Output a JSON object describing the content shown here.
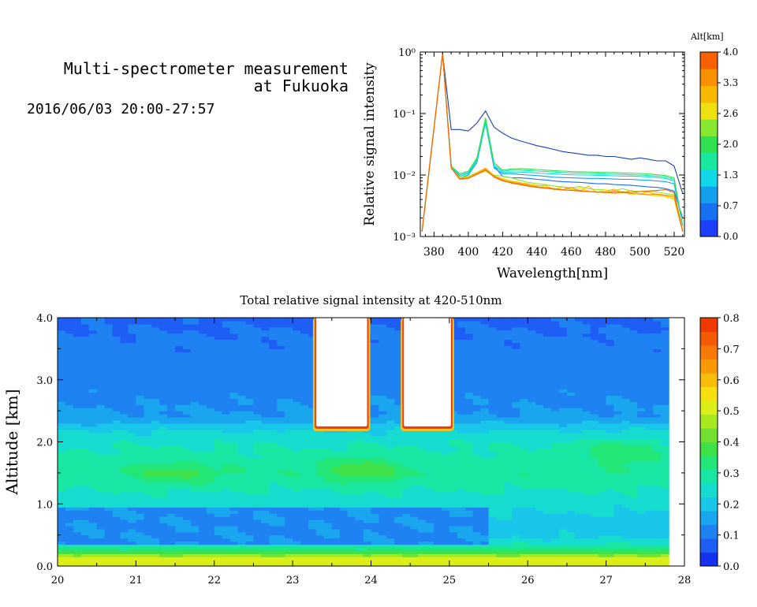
{
  "title_line1": "Multi-spectrometer measurement",
  "title_line2": "at Fukuoka",
  "subtitle": "2016/06/03 20:00-27:57",
  "chart_data": [
    {
      "type": "line",
      "xlabel": "Wavelength[nm]",
      "ylabel": "Relative signal intensity",
      "ylog": true,
      "xlim": [
        372,
        526
      ],
      "ylim": [
        0.001,
        1
      ],
      "x_ticks": [
        380,
        400,
        420,
        440,
        460,
        480,
        500,
        520
      ],
      "y_ticks": [
        {
          "value": 0.001,
          "label": "10⁻³"
        },
        {
          "value": 0.01,
          "label": "10⁻²"
        },
        {
          "value": 0.1,
          "label": "10⁻¹"
        },
        {
          "value": 1,
          "label": "10⁰"
        }
      ],
      "colorbar": {
        "title": "Alt[km]",
        "tick_labels": [
          "0.0",
          "0.7",
          "1.3",
          "2.0",
          "2.6",
          "3.3",
          "4.0"
        ],
        "colors": [
          "#1f3fff",
          "#1670f0",
          "#12a0ee",
          "#10d8e8",
          "#18e8a0",
          "#30e050",
          "#88e830",
          "#f0e010",
          "#f8b800",
          "#f89000",
          "#f86000"
        ]
      },
      "x": [
        373,
        385,
        390,
        395,
        400,
        405,
        410,
        415,
        420,
        425,
        430,
        435,
        440,
        445,
        450,
        455,
        460,
        465,
        470,
        475,
        480,
        485,
        490,
        495,
        500,
        505,
        510,
        515,
        520,
        525
      ],
      "series": [
        {
          "color": "#1640b0",
          "values": [
            0.0012,
            0.95,
            0.055,
            0.055,
            0.052,
            0.07,
            0.11,
            0.06,
            0.048,
            0.04,
            0.036,
            0.033,
            0.03,
            0.028,
            0.026,
            0.024,
            0.023,
            0.022,
            0.021,
            0.021,
            0.02,
            0.02,
            0.019,
            0.018,
            0.019,
            0.018,
            0.017,
            0.017,
            0.014,
            0.005
          ]
        },
        {
          "color": "#1670f0",
          "values": [
            0.0012,
            0.95,
            0.014,
            0.01,
            0.011,
            0.018,
            0.075,
            0.014,
            0.0095,
            0.009,
            0.009,
            0.0088,
            0.0085,
            0.0083,
            0.008,
            0.0078,
            0.0077,
            0.0076,
            0.0074,
            0.0072,
            0.0072,
            0.007,
            0.0069,
            0.0068,
            0.0066,
            0.0064,
            0.0063,
            0.006,
            0.0055,
            0.002
          ]
        },
        {
          "color": "#12a0ee",
          "values": [
            0.0012,
            0.95,
            0.014,
            0.009,
            0.01,
            0.016,
            0.07,
            0.013,
            0.0105,
            0.0105,
            0.0102,
            0.01,
            0.0098,
            0.0095,
            0.0092,
            0.0091,
            0.009,
            0.0089,
            0.0088,
            0.0088,
            0.0087,
            0.0086,
            0.0085,
            0.0085,
            0.0083,
            0.0082,
            0.008,
            0.0078,
            0.0072,
            0.0015
          ]
        },
        {
          "color": "#10d8e8",
          "values": [
            0.0012,
            0.95,
            0.014,
            0.0095,
            0.0105,
            0.017,
            0.072,
            0.014,
            0.011,
            0.0112,
            0.0112,
            0.011,
            0.0108,
            0.0106,
            0.0104,
            0.0102,
            0.0101,
            0.01,
            0.01,
            0.0099,
            0.0098,
            0.0097,
            0.0096,
            0.0096,
            0.0095,
            0.0093,
            0.0091,
            0.0088,
            0.008,
            0.0015
          ]
        },
        {
          "color": "#18e8a0",
          "values": [
            0.0012,
            0.95,
            0.014,
            0.01,
            0.011,
            0.018,
            0.078,
            0.015,
            0.0115,
            0.012,
            0.012,
            0.0118,
            0.0116,
            0.0114,
            0.0112,
            0.011,
            0.0108,
            0.0107,
            0.0106,
            0.0105,
            0.0104,
            0.0103,
            0.0102,
            0.0101,
            0.01,
            0.0098,
            0.0096,
            0.0093,
            0.0085,
            0.0015
          ]
        },
        {
          "color": "#30e050",
          "values": [
            0.0012,
            0.95,
            0.014,
            0.0105,
            0.0115,
            0.019,
            0.085,
            0.016,
            0.012,
            0.0125,
            0.0127,
            0.0125,
            0.0123,
            0.012,
            0.0118,
            0.0116,
            0.0114,
            0.0113,
            0.0112,
            0.0111,
            0.011,
            0.0109,
            0.0108,
            0.0107,
            0.0106,
            0.0104,
            0.0101,
            0.0098,
            0.009,
            0.0015
          ]
        },
        {
          "color": "#88e830",
          "values": [
            0.0012,
            0.95,
            0.013,
            0.009,
            0.0095,
            0.011,
            0.012,
            0.01,
            0.0095,
            0.009,
            0.0082,
            0.0076,
            0.0072,
            0.007,
            0.0066,
            0.0064,
            0.0062,
            0.0065,
            0.006,
            0.0058,
            0.0057,
            0.0056,
            0.006,
            0.0055,
            0.0054,
            0.0055,
            0.0053,
            0.005,
            0.0048,
            0.0012
          ]
        },
        {
          "color": "#f0e010",
          "values": [
            0.0012,
            0.95,
            0.013,
            0.009,
            0.0092,
            0.0105,
            0.0115,
            0.0095,
            0.0088,
            0.008,
            0.0076,
            0.007,
            0.0068,
            0.0064,
            0.006,
            0.0058,
            0.0056,
            0.0062,
            0.0055,
            0.0052,
            0.0058,
            0.005,
            0.0054,
            0.0048,
            0.005,
            0.0047,
            0.0046,
            0.0044,
            0.004,
            0.0012
          ]
        },
        {
          "color": "#f8b800",
          "values": [
            0.0012,
            0.95,
            0.013,
            0.0088,
            0.009,
            0.011,
            0.013,
            0.0098,
            0.0085,
            0.0078,
            0.0074,
            0.0072,
            0.0066,
            0.0068,
            0.0058,
            0.0064,
            0.0058,
            0.0055,
            0.0066,
            0.0052,
            0.0054,
            0.0059,
            0.0051,
            0.0056,
            0.0049,
            0.0053,
            0.0048,
            0.0046,
            0.0042,
            0.0012
          ]
        },
        {
          "color": "#f89000",
          "values": [
            0.0012,
            0.95,
            0.013,
            0.0085,
            0.0088,
            0.0105,
            0.0125,
            0.0092,
            0.008,
            0.0076,
            0.0072,
            0.0068,
            0.0064,
            0.0062,
            0.006,
            0.0058,
            0.0062,
            0.0056,
            0.0054,
            0.0053,
            0.0052,
            0.0051,
            0.0052,
            0.005,
            0.0049,
            0.0048,
            0.0049,
            0.0047,
            0.0045,
            0.0012
          ]
        },
        {
          "color": "#f86000",
          "values": [
            0.0012,
            0.95,
            0.013,
            0.0087,
            0.0089,
            0.0102,
            0.012,
            0.0094,
            0.0082,
            0.0074,
            0.007,
            0.0066,
            0.0063,
            0.0061,
            0.0059,
            0.0057,
            0.0056,
            0.0055,
            0.0054,
            0.0053,
            0.0052,
            0.0054,
            0.0053,
            0.0052,
            0.0054,
            0.0055,
            0.0056,
            0.0058,
            0.0052,
            0.0012
          ]
        }
      ]
    },
    {
      "type": "heatmap",
      "title": "Total relative signal intensity at 420-510nm",
      "ylabel": "Altitude [km]",
      "xlim": [
        20,
        28
      ],
      "ylim": [
        0,
        4
      ],
      "x_ticks": [
        "20",
        "21",
        "22",
        "23",
        "24",
        "25",
        "26",
        "27",
        "28"
      ],
      "y_ticks": [
        "0.0",
        "1.0",
        "2.0",
        "3.0",
        "4.0"
      ],
      "colorbar": {
        "vmin": 0,
        "vmax": 0.8,
        "tick_labels": [
          "0.0",
          "0.1",
          "0.2",
          "0.3",
          "0.4",
          "0.5",
          "0.6",
          "0.7",
          "0.8"
        ],
        "colors": [
          "#1432f0",
          "#1e5ef4",
          "#1f82f2",
          "#1aa6ee",
          "#18c6ea",
          "#16dccf",
          "#18e6a2",
          "#22e676",
          "#3fe048",
          "#72e030",
          "#a8e820",
          "#dcee18",
          "#f8e010",
          "#f8bc0a",
          "#f89a06",
          "#f87a04",
          "#f45a02",
          "#ee3a00"
        ]
      },
      "field": {
        "x_range": [
          20,
          27.8
        ],
        "base_profile": [
          {
            "alt": 0.0,
            "value": 0.5
          },
          {
            "alt": 0.14,
            "value": 0.52
          },
          {
            "alt": 0.2,
            "value": 0.4
          },
          {
            "alt": 0.3,
            "value": 0.3
          },
          {
            "alt": 0.45,
            "value": 0.22
          },
          {
            "alt": 0.7,
            "value": 0.2
          },
          {
            "alt": 1.0,
            "value": 0.24
          },
          {
            "alt": 1.25,
            "value": 0.27
          },
          {
            "alt": 1.5,
            "value": 0.3
          },
          {
            "alt": 1.75,
            "value": 0.28
          },
          {
            "alt": 2.0,
            "value": 0.26
          },
          {
            "alt": 2.2,
            "value": 0.22
          },
          {
            "alt": 2.4,
            "value": 0.14
          },
          {
            "alt": 3.0,
            "value": 0.11
          },
          {
            "alt": 3.6,
            "value": 0.1
          },
          {
            "alt": 4.0,
            "value": 0.08
          }
        ],
        "features": [
          {
            "kind": "low_band",
            "x0": 20,
            "x1": 25.5,
            "y0": 0.35,
            "y1": 0.95,
            "value": 0.13
          },
          {
            "kind": "hotspot",
            "x": 21.5,
            "y": 1.5,
            "rx": 0.6,
            "ry": 0.18,
            "amp": 0.07
          },
          {
            "kind": "hotspot",
            "x": 23.9,
            "y": 1.55,
            "rx": 0.5,
            "ry": 0.2,
            "amp": 0.1
          },
          {
            "kind": "hotspot",
            "x": 27.2,
            "y": 1.85,
            "rx": 0.5,
            "ry": 0.2,
            "amp": 0.08
          }
        ],
        "saturated": [
          {
            "x0": 23.3,
            "x1": 23.95,
            "y0": 2.25,
            "y1": 4.0
          },
          {
            "x0": 24.42,
            "x1": 25.02,
            "y0": 2.25,
            "y1": 4.0
          }
        ]
      }
    }
  ]
}
